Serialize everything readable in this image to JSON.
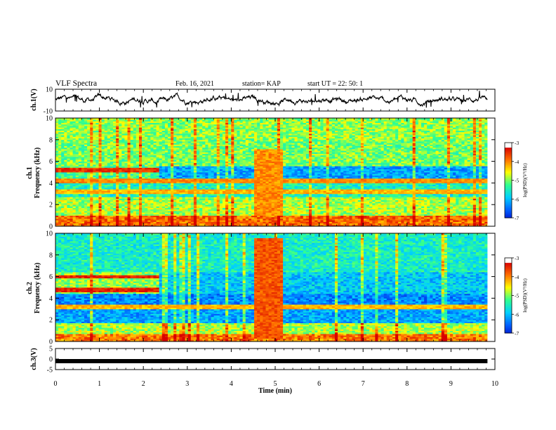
{
  "header": {
    "title": "VLF Spectra",
    "date": "Feb. 16, 2021",
    "station": "station= KAP",
    "start": "start  UT  =   22: 50: 1"
  },
  "chart_data": [
    {
      "type": "line",
      "panel": "ch1-waveform",
      "ylabel": "ch.1(V)",
      "ylim": [
        -10,
        10
      ],
      "y_ticks": [
        "10",
        "-10"
      ],
      "x_range_min": [
        0,
        9.83
      ],
      "description_values": "noisy waveform fluctuating roughly between -6 and +6 V around 0"
    },
    {
      "type": "heatmap",
      "panel": "ch1-spectrogram",
      "ylabel": "ch.1\nFrequency (kHz)",
      "ylim_khz": [
        0,
        10
      ],
      "y_ticks": [
        "0",
        "2",
        "4",
        "6",
        "8",
        "10"
      ],
      "colorbar_label": "log(PSD)(V²/Hz)",
      "colorbar_range": [
        -7,
        -3
      ],
      "colorbar_ticks": [
        "-3",
        "-4",
        "-5",
        "-6",
        "-7"
      ],
      "features": [
        {
          "kind": "band",
          "t": [
            0,
            2.3
          ],
          "f_khz": [
            4.9,
            5.4
          ],
          "level": -3.3
        },
        {
          "kind": "band",
          "t": [
            0,
            9.83
          ],
          "f_khz": [
            4.0,
            4.4
          ],
          "level": -3.8
        },
        {
          "kind": "band",
          "t": [
            0,
            9.83
          ],
          "f_khz": [
            2.9,
            3.4
          ],
          "level": -4.0
        },
        {
          "kind": "burst",
          "t": [
            4.5,
            5.15
          ],
          "f_khz": [
            0.9,
            7.1
          ],
          "level": -3.8
        }
      ]
    },
    {
      "type": "heatmap",
      "panel": "ch2-spectrogram",
      "ylabel": "ch.2\nFrequency (kHz)",
      "ylim_khz": [
        0,
        10
      ],
      "y_ticks": [
        "0",
        "2",
        "4",
        "6",
        "8",
        "10"
      ],
      "colorbar_label": "log(PSD)(V²/Hz)",
      "colorbar_range": [
        -7,
        -3
      ],
      "colorbar_ticks": [
        "-3",
        "-4",
        "-5",
        "-6",
        "-7"
      ],
      "features": [
        {
          "kind": "band",
          "t": [
            0,
            2.3
          ],
          "f_khz": [
            5.8,
            6.1
          ],
          "level": -3.2
        },
        {
          "kind": "band",
          "t": [
            0,
            2.3
          ],
          "f_khz": [
            4.5,
            4.9
          ],
          "level": -3.2
        },
        {
          "kind": "band",
          "t": [
            0,
            9.83
          ],
          "f_khz": [
            3.0,
            3.4
          ],
          "level": -4.0
        },
        {
          "kind": "burst",
          "t": [
            4.5,
            5.15
          ],
          "f_khz": [
            0.2,
            9.5
          ],
          "level": -3.5
        }
      ]
    },
    {
      "type": "line",
      "panel": "ch3-signal",
      "ylabel": "ch.3(V)",
      "ylim": [
        -5,
        5
      ],
      "y_ticks": [
        "5",
        "0",
        "-5"
      ],
      "x": [
        0,
        9.83
      ],
      "y": [
        -1,
        -1
      ]
    }
  ],
  "xaxis": {
    "label": "Time  (min)",
    "range": [
      0,
      10
    ],
    "ticks": [
      "0",
      "1",
      "2",
      "3",
      "4",
      "5",
      "6",
      "7",
      "8",
      "9",
      "10"
    ]
  },
  "colors": {
    "colormap": [
      "#0000c0",
      "#0060ff",
      "#00d0ff",
      "#30ff90",
      "#ffff00",
      "#ff7000",
      "#d80000",
      "#ffffff"
    ]
  }
}
